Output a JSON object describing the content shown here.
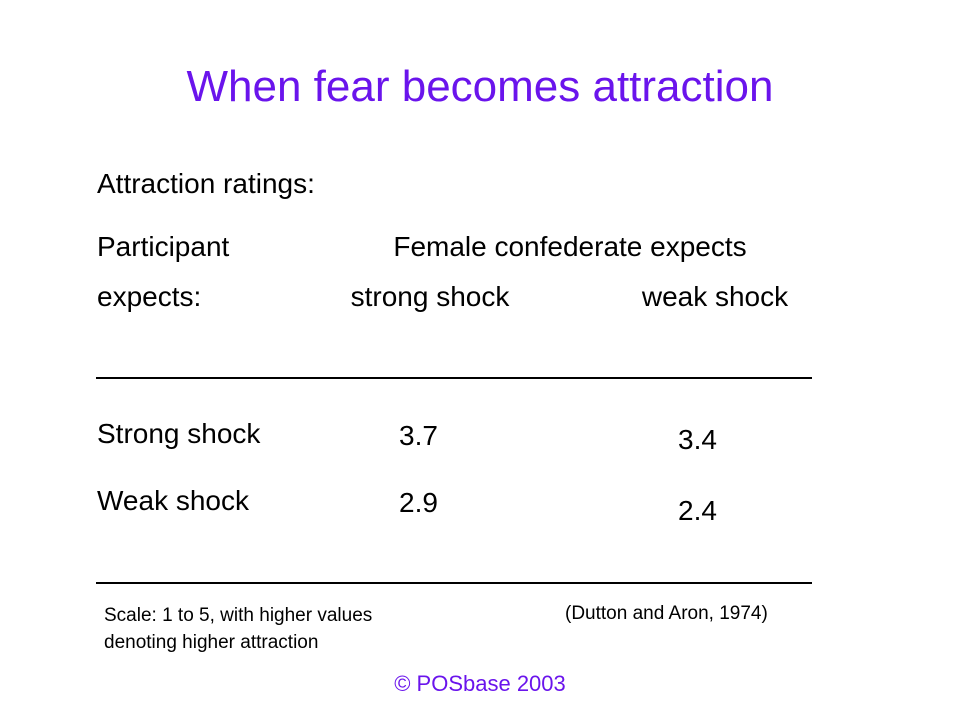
{
  "slide": {
    "title": "When fear becomes attraction",
    "subtitle": "Attraction ratings:",
    "header": {
      "row_label_line1": "Participant",
      "row_label_line2": "expects:",
      "group_label": "Female confederate expects",
      "col1": "strong shock",
      "col2": "weak shock"
    },
    "rows": [
      {
        "label": "Strong shock",
        "strong": "3.7",
        "weak": "3.4"
      },
      {
        "label": "Weak shock",
        "strong": "2.9",
        "weak": "2.4"
      }
    ],
    "scale_note_line1": "Scale: 1 to 5, with higher values",
    "scale_note_line2": "denoting higher attraction",
    "citation": "(Dutton and Aron, 1974)",
    "footer": "© POSbase 2003"
  },
  "colors": {
    "title": "#6a14ec",
    "text": "#000000",
    "footer": "#6a14ec"
  }
}
